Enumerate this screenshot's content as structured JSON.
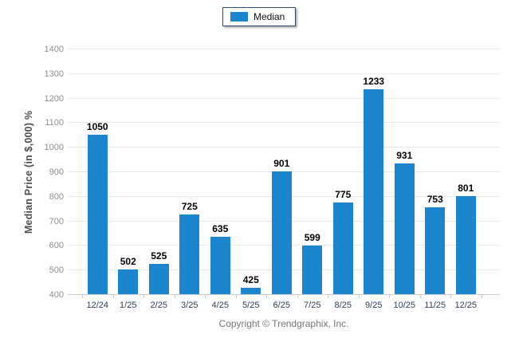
{
  "legend": {
    "label": "Median",
    "swatch_color": "#1b86ce"
  },
  "y_axis": {
    "title": "Median Price (in $,000) %"
  },
  "footer": {
    "text": "Copyright © Trendgraphix, Inc."
  },
  "colors": {
    "bar": "#1b86ce",
    "gridline": "#e8e8e8",
    "baseline": "#cfcfcf",
    "y_tick_text": "#8e8e8e",
    "x_tick_text": "#2e3f57",
    "value_label_text": "#000000",
    "legend_border": "#2c4d70",
    "footer_text": "#757575"
  },
  "chart_data": {
    "type": "bar",
    "title": "",
    "categories": [
      "12/24",
      "1/25",
      "2/25",
      "3/25",
      "4/25",
      "5/25",
      "6/25",
      "7/25",
      "8/25",
      "9/25",
      "10/25",
      "11/25",
      "12/25"
    ],
    "series": [
      {
        "name": "Median",
        "values": [
          1050,
          502,
          525,
          725,
          635,
          425,
          901,
          599,
          775,
          1233,
          931,
          753,
          801
        ]
      }
    ],
    "data_labels": [
      "1050",
      "502",
      "525",
      "725",
      "635",
      "425",
      "901",
      "599",
      "775",
      "1233",
      "931",
      "753",
      "801"
    ],
    "xlabel": "",
    "ylabel": "Median Price (in $,000) %",
    "ylim": [
      400,
      1400
    ],
    "ytick_step": 100,
    "yticks": [
      "400",
      "500",
      "600",
      "700",
      "800",
      "900",
      "1000",
      "1100",
      "1200",
      "1300",
      "1400"
    ],
    "grid": true,
    "legend_position": "top-center"
  }
}
